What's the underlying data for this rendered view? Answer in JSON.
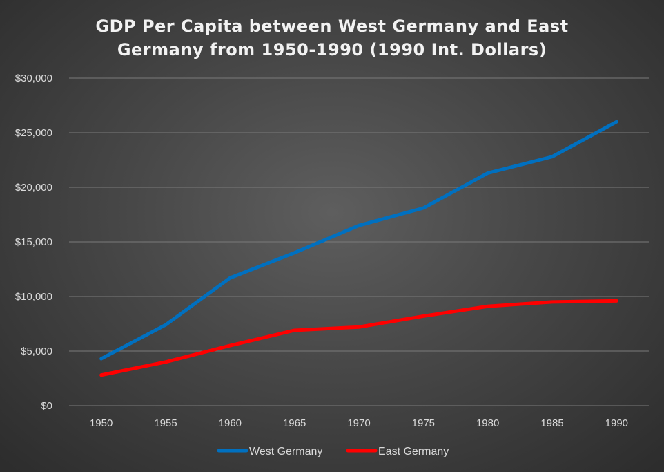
{
  "chart_data": {
    "type": "line",
    "title_lines": [
      "GDP Per Capita between West Germany and East",
      "Germany from 1950-1990 (1990 Int. Dollars)"
    ],
    "categories": [
      "1950",
      "1955",
      "1960",
      "1965",
      "1970",
      "1975",
      "1980",
      "1985",
      "1990"
    ],
    "y_ticks": [
      0,
      5000,
      10000,
      15000,
      20000,
      25000,
      30000
    ],
    "y_tick_labels": [
      "$0",
      "$5,000",
      "$10,000",
      "$15,000",
      "$20,000",
      "$25,000",
      "$30,000"
    ],
    "ylim": [
      0,
      30000
    ],
    "grid": true,
    "legend_position": "bottom",
    "series": [
      {
        "name": "West Germany",
        "color": "#0070c0",
        "values": [
          4300,
          7400,
          11700,
          14000,
          16500,
          18100,
          21300,
          22800,
          26000
        ]
      },
      {
        "name": "East Germany",
        "color": "#ff0000",
        "values": [
          2800,
          4000,
          5500,
          6900,
          7200,
          8200,
          9100,
          9500,
          9600
        ]
      }
    ]
  }
}
